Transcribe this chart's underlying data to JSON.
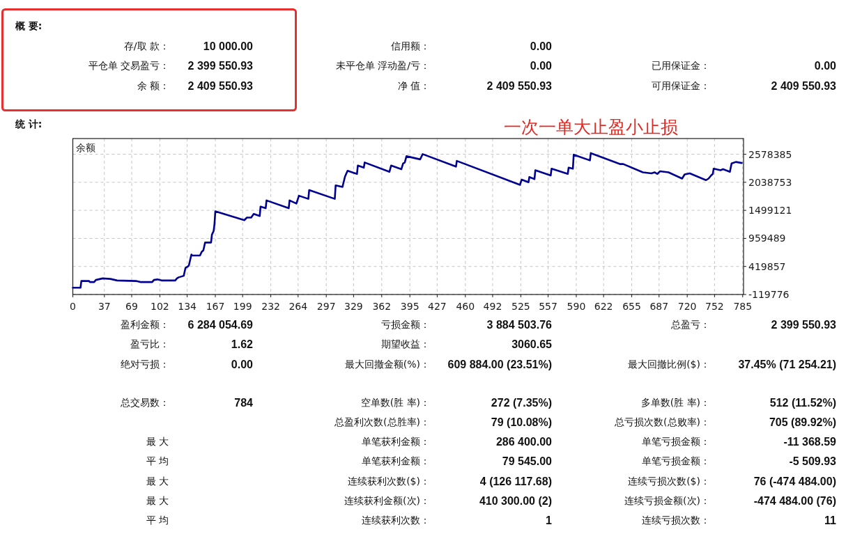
{
  "chart_data": {
    "type": "line",
    "title": "余额",
    "x": [
      0,
      9,
      10,
      19,
      20,
      25,
      27,
      35,
      44,
      52,
      74,
      79,
      93,
      95,
      99,
      104,
      120,
      122,
      124,
      130,
      132,
      135,
      136,
      139,
      140,
      149,
      151,
      153,
      155,
      162,
      163,
      165,
      166,
      167,
      201,
      204,
      209,
      212,
      219,
      220,
      226,
      227,
      253,
      254,
      262,
      265,
      276,
      277,
      307,
      308,
      316,
      319,
      322,
      333,
      334,
      341,
      342,
      371,
      373,
      385,
      387,
      389,
      391,
      407,
      410,
      449,
      450,
      524,
      526,
      534,
      535,
      541,
      542,
      560,
      561,
      580,
      581,
      586,
      587,
      606,
      607,
      641,
      645,
      668,
      678,
      682,
      685,
      688,
      698,
      714,
      717,
      723,
      742,
      745,
      748,
      750,
      751,
      759,
      762,
      770,
      772,
      777,
      784
    ],
    "series": [
      {
        "color": "#000090",
        "values": [
          10000,
          10000,
          140000,
          140000,
          120000,
          120000,
          160000,
          190000,
          180000,
          150000,
          140000,
          120000,
          120000,
          160000,
          170000,
          150000,
          150000,
          190000,
          210000,
          240000,
          390000,
          420000,
          440000,
          650000,
          630000,
          630000,
          700000,
          730000,
          880000,
          880000,
          1030000,
          1100000,
          1230000,
          1480000,
          1310000,
          1360000,
          1360000,
          1430000,
          1390000,
          1570000,
          1540000,
          1690000,
          1540000,
          1690000,
          1630000,
          1780000,
          1720000,
          1890000,
          1720000,
          1980000,
          1950000,
          2150000,
          2260000,
          2200000,
          2360000,
          2320000,
          2420000,
          2240000,
          2360000,
          2290000,
          2400000,
          2420000,
          2540000,
          2480000,
          2580000,
          2340000,
          2450000,
          1990000,
          2090000,
          2040000,
          2140000,
          2100000,
          2270000,
          2170000,
          2300000,
          2200000,
          2320000,
          2300000,
          2570000,
          2460000,
          2600000,
          2390000,
          2390000,
          2230000,
          2210000,
          2230000,
          2200000,
          2250000,
          2230000,
          2110000,
          2190000,
          2210000,
          2080000,
          2110000,
          2170000,
          2200000,
          2300000,
          2270000,
          2290000,
          2240000,
          2400000,
          2430000,
          2410000
        ]
      }
    ],
    "xlim": [
      0,
      786
    ],
    "xticks": [
      0,
      37,
      69,
      102,
      134,
      167,
      199,
      232,
      264,
      297,
      329,
      362,
      395,
      427,
      460,
      492,
      525,
      557,
      590,
      622,
      655,
      687,
      720,
      752,
      785
    ],
    "ylim": [
      -119776,
      2880000
    ],
    "yticks": [
      -119776,
      419857,
      959489,
      1499121,
      2038753,
      2578385
    ],
    "grid": true,
    "line_style": "solid",
    "annotations": [
      "概 要:",
      "存/取 款：",
      "10 000.00",
      "信用额：",
      "0.00",
      "平仓单 交易盈亏：",
      "2 399 550.93",
      "未平仓单 浮动盈/亏：",
      "0.00",
      "已用保证金：",
      "0.00",
      "余 额：",
      "2 409 550.93",
      "净 值：",
      "2 409 550.93",
      "可用保证金：",
      "2 409 550.93",
      "统 计:",
      "一次一单大止盈小止损",
      "盈利金额：",
      "6 284 054.69",
      "亏损金额：",
      "3 884 503.76",
      "总盈亏：",
      "2 399 550.93",
      "盈亏比：",
      "1.62",
      "期望收益：",
      "3060.65",
      "绝对亏损：",
      "0.00",
      "最大回撤金额(%)：",
      "609 884.00 (23.51%)",
      "最大回撤比例($)：",
      "37.45% (71 254.21)",
      "总交易数：",
      "784",
      "空单数(胜 率)：",
      "272 (7.35%)",
      "多单数(胜 率)：",
      "512 (11.52%)",
      "总盈利次数(总胜率)：",
      "79 (10.08%)",
      "总亏损次数(总败率)：",
      "705 (89.92%)",
      "最 大",
      "单笔获利金额：",
      "286 400.00",
      "单笔亏损金额：",
      "-11 368.59",
      "平 均",
      "单笔获利金额：",
      "79 545.00",
      "单笔亏损金额：",
      "-5 509.93",
      "最 大",
      "连续获利次数($)：",
      "4 (126 117.68)",
      "连续亏损次数($)：",
      "76 (-474 484.00)",
      "最 大",
      "连续获利金额(次)：",
      "410 300.00 (2)",
      "连续亏损金额(次)：",
      "-474 484.00 (76)",
      "平 均",
      "连续获利次数：",
      "1",
      "连续亏损次数：",
      "11"
    ]
  }
}
